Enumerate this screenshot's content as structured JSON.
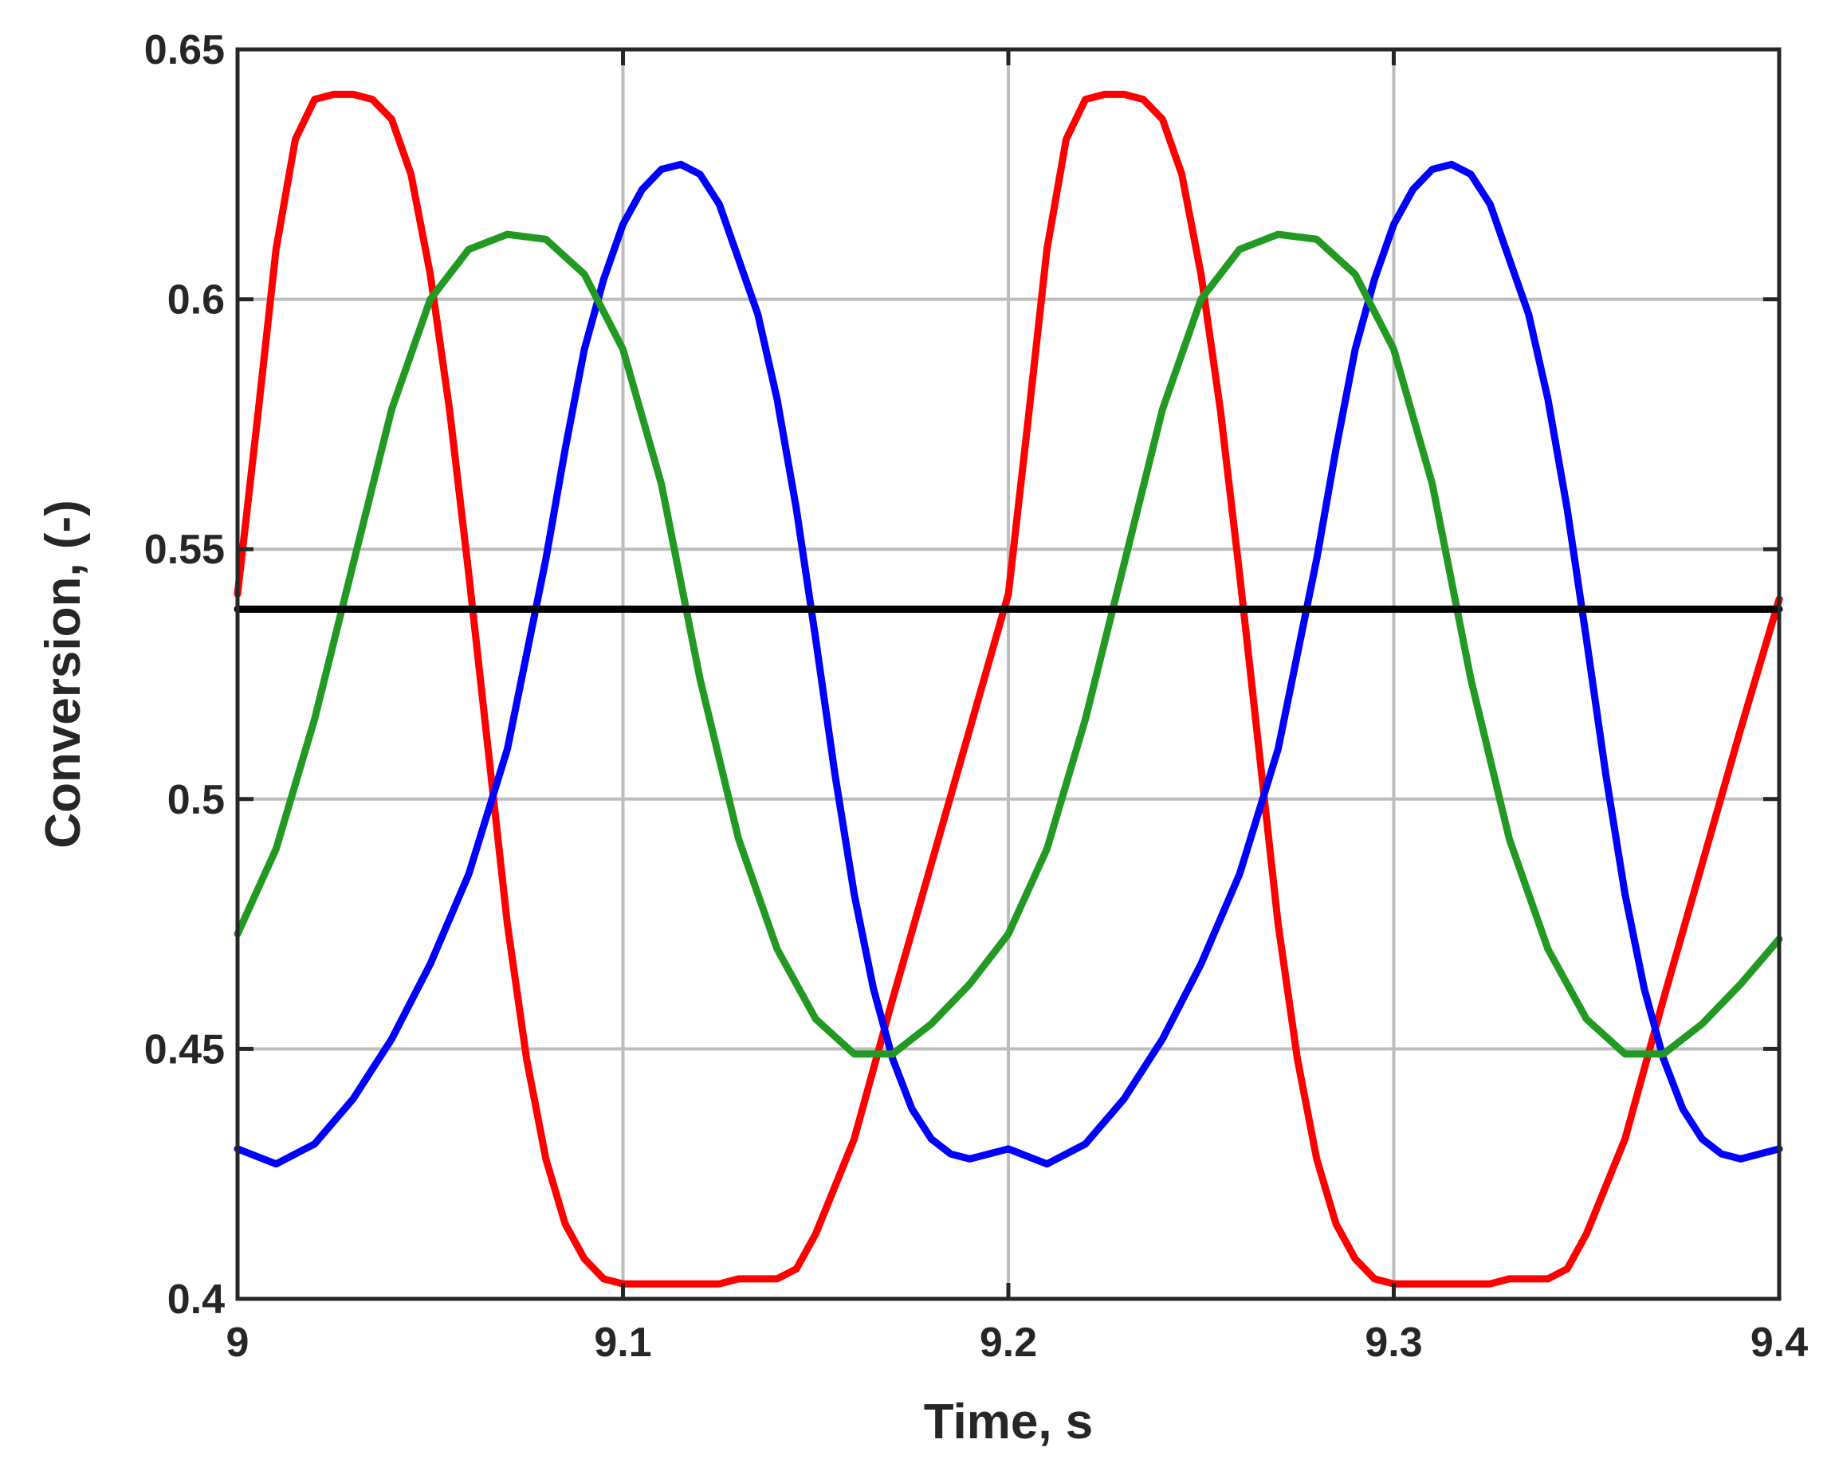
{
  "chart_data": {
    "type": "line",
    "title": "",
    "xlabel": "Time, s",
    "ylabel": "Conversion, (-)",
    "xlim": [
      9,
      9.4
    ],
    "ylim": [
      0.4,
      0.65
    ],
    "xticks": [
      9,
      9.1,
      9.2,
      9.3,
      9.4
    ],
    "xtick_labels": [
      "9",
      "9.1",
      "9.2",
      "9.3",
      "9.4"
    ],
    "yticks": [
      0.4,
      0.45,
      0.5,
      0.55,
      0.6,
      0.65
    ],
    "ytick_labels": [
      "0.4",
      "0.45",
      "0.5",
      "0.55",
      "0.6",
      "0.65"
    ],
    "grid": true,
    "legend": "none",
    "series": [
      {
        "color": "#ff0000",
        "x": [
          9.0,
          9.005,
          9.01,
          9.015,
          9.02,
          9.025,
          9.03,
          9.035,
          9.04,
          9.045,
          9.05,
          9.055,
          9.06,
          9.065,
          9.07,
          9.075,
          9.08,
          9.085,
          9.09,
          9.095,
          9.1,
          9.105,
          9.11,
          9.115,
          9.12,
          9.125,
          9.13,
          9.135,
          9.14,
          9.145,
          9.15,
          9.16,
          9.17,
          9.18,
          9.19,
          9.2,
          9.205,
          9.21,
          9.215,
          9.22,
          9.225,
          9.23,
          9.235,
          9.24,
          9.245,
          9.25,
          9.255,
          9.26,
          9.265,
          9.27,
          9.275,
          9.28,
          9.285,
          9.29,
          9.295,
          9.3,
          9.305,
          9.31,
          9.315,
          9.32,
          9.325,
          9.33,
          9.335,
          9.34,
          9.345,
          9.35,
          9.36,
          9.37,
          9.38,
          9.39,
          9.4
        ],
        "y": [
          0.541,
          0.575,
          0.61,
          0.632,
          0.64,
          0.641,
          0.641,
          0.64,
          0.636,
          0.625,
          0.605,
          0.578,
          0.545,
          0.51,
          0.475,
          0.448,
          0.428,
          0.415,
          0.408,
          0.404,
          0.403,
          0.403,
          0.403,
          0.403,
          0.403,
          0.403,
          0.404,
          0.404,
          0.404,
          0.406,
          0.413,
          0.432,
          0.46,
          0.487,
          0.514,
          0.541,
          0.575,
          0.61,
          0.632,
          0.64,
          0.641,
          0.641,
          0.64,
          0.636,
          0.625,
          0.605,
          0.578,
          0.545,
          0.51,
          0.475,
          0.448,
          0.428,
          0.415,
          0.408,
          0.404,
          0.403,
          0.403,
          0.403,
          0.403,
          0.403,
          0.403,
          0.404,
          0.404,
          0.404,
          0.406,
          0.413,
          0.432,
          0.46,
          0.487,
          0.514,
          0.54
        ]
      },
      {
        "color": "#0000ff",
        "x": [
          9.0,
          9.01,
          9.02,
          9.03,
          9.04,
          9.05,
          9.06,
          9.07,
          9.08,
          9.085,
          9.09,
          9.095,
          9.1,
          9.105,
          9.11,
          9.115,
          9.12,
          9.125,
          9.13,
          9.135,
          9.14,
          9.145,
          9.15,
          9.155,
          9.16,
          9.165,
          9.17,
          9.175,
          9.18,
          9.185,
          9.19,
          9.2,
          9.21,
          9.22,
          9.23,
          9.24,
          9.25,
          9.26,
          9.27,
          9.28,
          9.285,
          9.29,
          9.295,
          9.3,
          9.305,
          9.31,
          9.315,
          9.32,
          9.325,
          9.33,
          9.335,
          9.34,
          9.345,
          9.35,
          9.355,
          9.36,
          9.365,
          9.37,
          9.375,
          9.38,
          9.385,
          9.39,
          9.4
        ],
        "y": [
          0.43,
          0.427,
          0.431,
          0.44,
          0.452,
          0.467,
          0.485,
          0.51,
          0.548,
          0.57,
          0.59,
          0.604,
          0.615,
          0.622,
          0.626,
          0.627,
          0.625,
          0.619,
          0.608,
          0.597,
          0.58,
          0.558,
          0.532,
          0.505,
          0.481,
          0.462,
          0.448,
          0.438,
          0.432,
          0.429,
          0.428,
          0.43,
          0.427,
          0.431,
          0.44,
          0.452,
          0.467,
          0.485,
          0.51,
          0.548,
          0.57,
          0.59,
          0.604,
          0.615,
          0.622,
          0.626,
          0.627,
          0.625,
          0.619,
          0.608,
          0.597,
          0.58,
          0.558,
          0.532,
          0.505,
          0.481,
          0.462,
          0.448,
          0.438,
          0.432,
          0.429,
          0.428,
          0.43
        ]
      },
      {
        "color": "#229922",
        "x": [
          9.0,
          9.01,
          9.02,
          9.03,
          9.04,
          9.05,
          9.06,
          9.07,
          9.08,
          9.09,
          9.1,
          9.11,
          9.12,
          9.13,
          9.14,
          9.15,
          9.16,
          9.17,
          9.18,
          9.19,
          9.2,
          9.21,
          9.22,
          9.23,
          9.24,
          9.25,
          9.26,
          9.27,
          9.28,
          9.29,
          9.3,
          9.31,
          9.32,
          9.33,
          9.34,
          9.35,
          9.36,
          9.37,
          9.38,
          9.39,
          9.4
        ],
        "y": [
          0.473,
          0.49,
          0.516,
          0.547,
          0.578,
          0.6,
          0.61,
          0.613,
          0.612,
          0.605,
          0.59,
          0.563,
          0.524,
          0.492,
          0.47,
          0.456,
          0.449,
          0.449,
          0.455,
          0.463,
          0.473,
          0.49,
          0.516,
          0.547,
          0.578,
          0.6,
          0.61,
          0.613,
          0.612,
          0.605,
          0.59,
          0.563,
          0.524,
          0.492,
          0.47,
          0.456,
          0.449,
          0.449,
          0.455,
          0.463,
          0.472
        ]
      },
      {
        "color": "#000000",
        "x": [
          9.0,
          9.4
        ],
        "y": [
          0.538,
          0.538
        ]
      }
    ]
  }
}
